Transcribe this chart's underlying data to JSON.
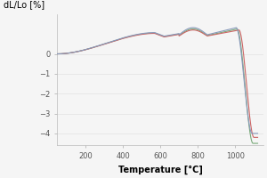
{
  "title": "",
  "xlabel": "Temperature [°C]",
  "ylabel": "dL/Lo [%]",
  "xlim": [
    50,
    1150
  ],
  "ylim": [
    -4.6,
    2.0
  ],
  "xticks": [
    200,
    400,
    600,
    800,
    1000
  ],
  "yticks": [
    0,
    -1,
    -2,
    -3,
    -4
  ],
  "background_color": "#f5f5f5",
  "line_colors": [
    "#7aaa7a",
    "#cc6666",
    "#8899bb"
  ],
  "line_width": 0.8
}
